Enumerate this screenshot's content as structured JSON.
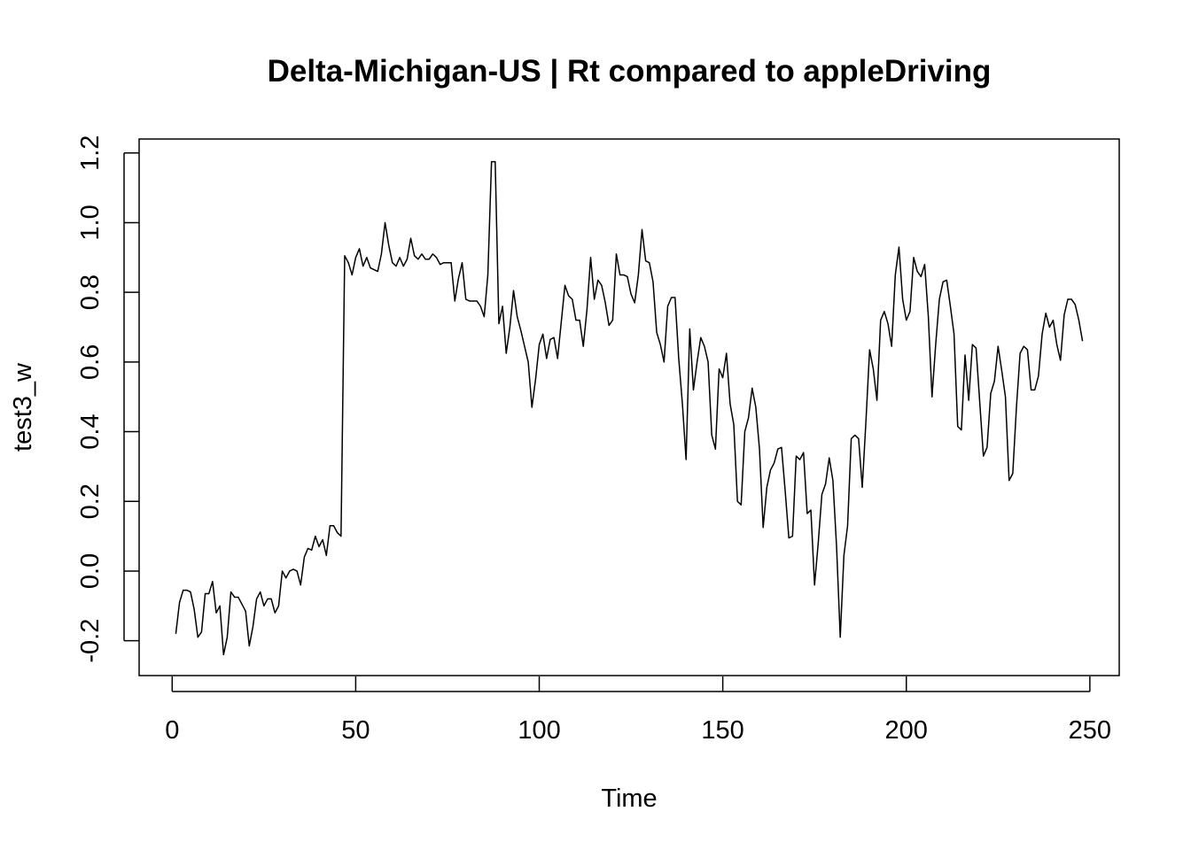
{
  "chart_data": {
    "type": "line",
    "title": "Delta-Michigan-US | Rt compared to appleDriving",
    "xlabel": "Time",
    "ylabel": "test3_w",
    "xlim": [
      -9,
      258
    ],
    "ylim": [
      -0.3,
      1.24
    ],
    "x_ticks": [
      0,
      50,
      100,
      150,
      200,
      250
    ],
    "x_tick_labels": [
      "0",
      "50",
      "100",
      "150",
      "200",
      "250"
    ],
    "y_ticks": [
      -0.2,
      0.0,
      0.2,
      0.4,
      0.6,
      0.8,
      1.0,
      1.2
    ],
    "y_tick_labels": [
      "-0.2",
      "0.0",
      "0.2",
      "0.4",
      "0.6",
      "0.8",
      "1.0",
      "1.2"
    ],
    "grid": false,
    "legend": "none",
    "series": [
      {
        "x_start": 1,
        "values": [
          -0.18,
          -0.09,
          -0.055,
          -0.055,
          -0.06,
          -0.11,
          -0.19,
          -0.175,
          -0.065,
          -0.065,
          -0.03,
          -0.12,
          -0.1,
          -0.24,
          -0.19,
          -0.06,
          -0.075,
          -0.075,
          -0.095,
          -0.115,
          -0.215,
          -0.16,
          -0.08,
          -0.06,
          -0.1,
          -0.08,
          -0.08,
          -0.12,
          -0.1,
          0.0,
          -0.02,
          0.0,
          0.005,
          0.0,
          -0.04,
          0.04,
          0.065,
          0.06,
          0.1,
          0.07,
          0.09,
          0.045,
          0.13,
          0.13,
          0.11,
          0.1,
          0.905,
          0.885,
          0.85,
          0.9,
          0.925,
          0.875,
          0.9,
          0.87,
          0.865,
          0.86,
          0.91,
          1.0,
          0.935,
          0.885,
          0.875,
          0.9,
          0.875,
          0.895,
          0.955,
          0.905,
          0.895,
          0.91,
          0.895,
          0.895,
          0.91,
          0.9,
          0.88,
          0.885,
          0.885,
          0.885,
          0.775,
          0.84,
          0.885,
          0.78,
          0.775,
          0.775,
          0.775,
          0.76,
          0.73,
          0.85,
          1.175,
          1.175,
          0.71,
          0.76,
          0.625,
          0.7,
          0.805,
          0.73,
          0.69,
          0.645,
          0.6,
          0.47,
          0.55,
          0.65,
          0.68,
          0.61,
          0.665,
          0.67,
          0.61,
          0.715,
          0.82,
          0.79,
          0.78,
          0.72,
          0.72,
          0.645,
          0.75,
          0.9,
          0.78,
          0.835,
          0.82,
          0.77,
          0.705,
          0.72,
          0.91,
          0.85,
          0.85,
          0.845,
          0.795,
          0.77,
          0.85,
          0.98,
          0.89,
          0.885,
          0.83,
          0.685,
          0.65,
          0.6,
          0.76,
          0.785,
          0.785,
          0.61,
          0.48,
          0.32,
          0.695,
          0.52,
          0.6,
          0.67,
          0.645,
          0.6,
          0.39,
          0.35,
          0.58,
          0.555,
          0.625,
          0.48,
          0.42,
          0.2,
          0.19,
          0.4,
          0.44,
          0.525,
          0.47,
          0.35,
          0.125,
          0.24,
          0.29,
          0.31,
          0.35,
          0.355,
          0.23,
          0.095,
          0.1,
          0.33,
          0.32,
          0.34,
          0.165,
          0.175,
          -0.04,
          0.08,
          0.22,
          0.25,
          0.325,
          0.26,
          0.07,
          -0.19,
          0.045,
          0.13,
          0.38,
          0.39,
          0.38,
          0.24,
          0.43,
          0.635,
          0.58,
          0.49,
          0.72,
          0.745,
          0.71,
          0.645,
          0.85,
          0.93,
          0.78,
          0.72,
          0.745,
          0.9,
          0.86,
          0.845,
          0.88,
          0.73,
          0.5,
          0.65,
          0.78,
          0.83,
          0.835,
          0.76,
          0.68,
          0.415,
          0.405,
          0.62,
          0.49,
          0.65,
          0.64,
          0.485,
          0.33,
          0.355,
          0.51,
          0.545,
          0.645,
          0.575,
          0.5,
          0.26,
          0.28,
          0.47,
          0.625,
          0.645,
          0.635,
          0.52,
          0.52,
          0.56,
          0.68,
          0.74,
          0.7,
          0.72,
          0.65,
          0.605,
          0.735,
          0.78,
          0.78,
          0.765,
          0.72,
          0.66
        ]
      }
    ]
  }
}
